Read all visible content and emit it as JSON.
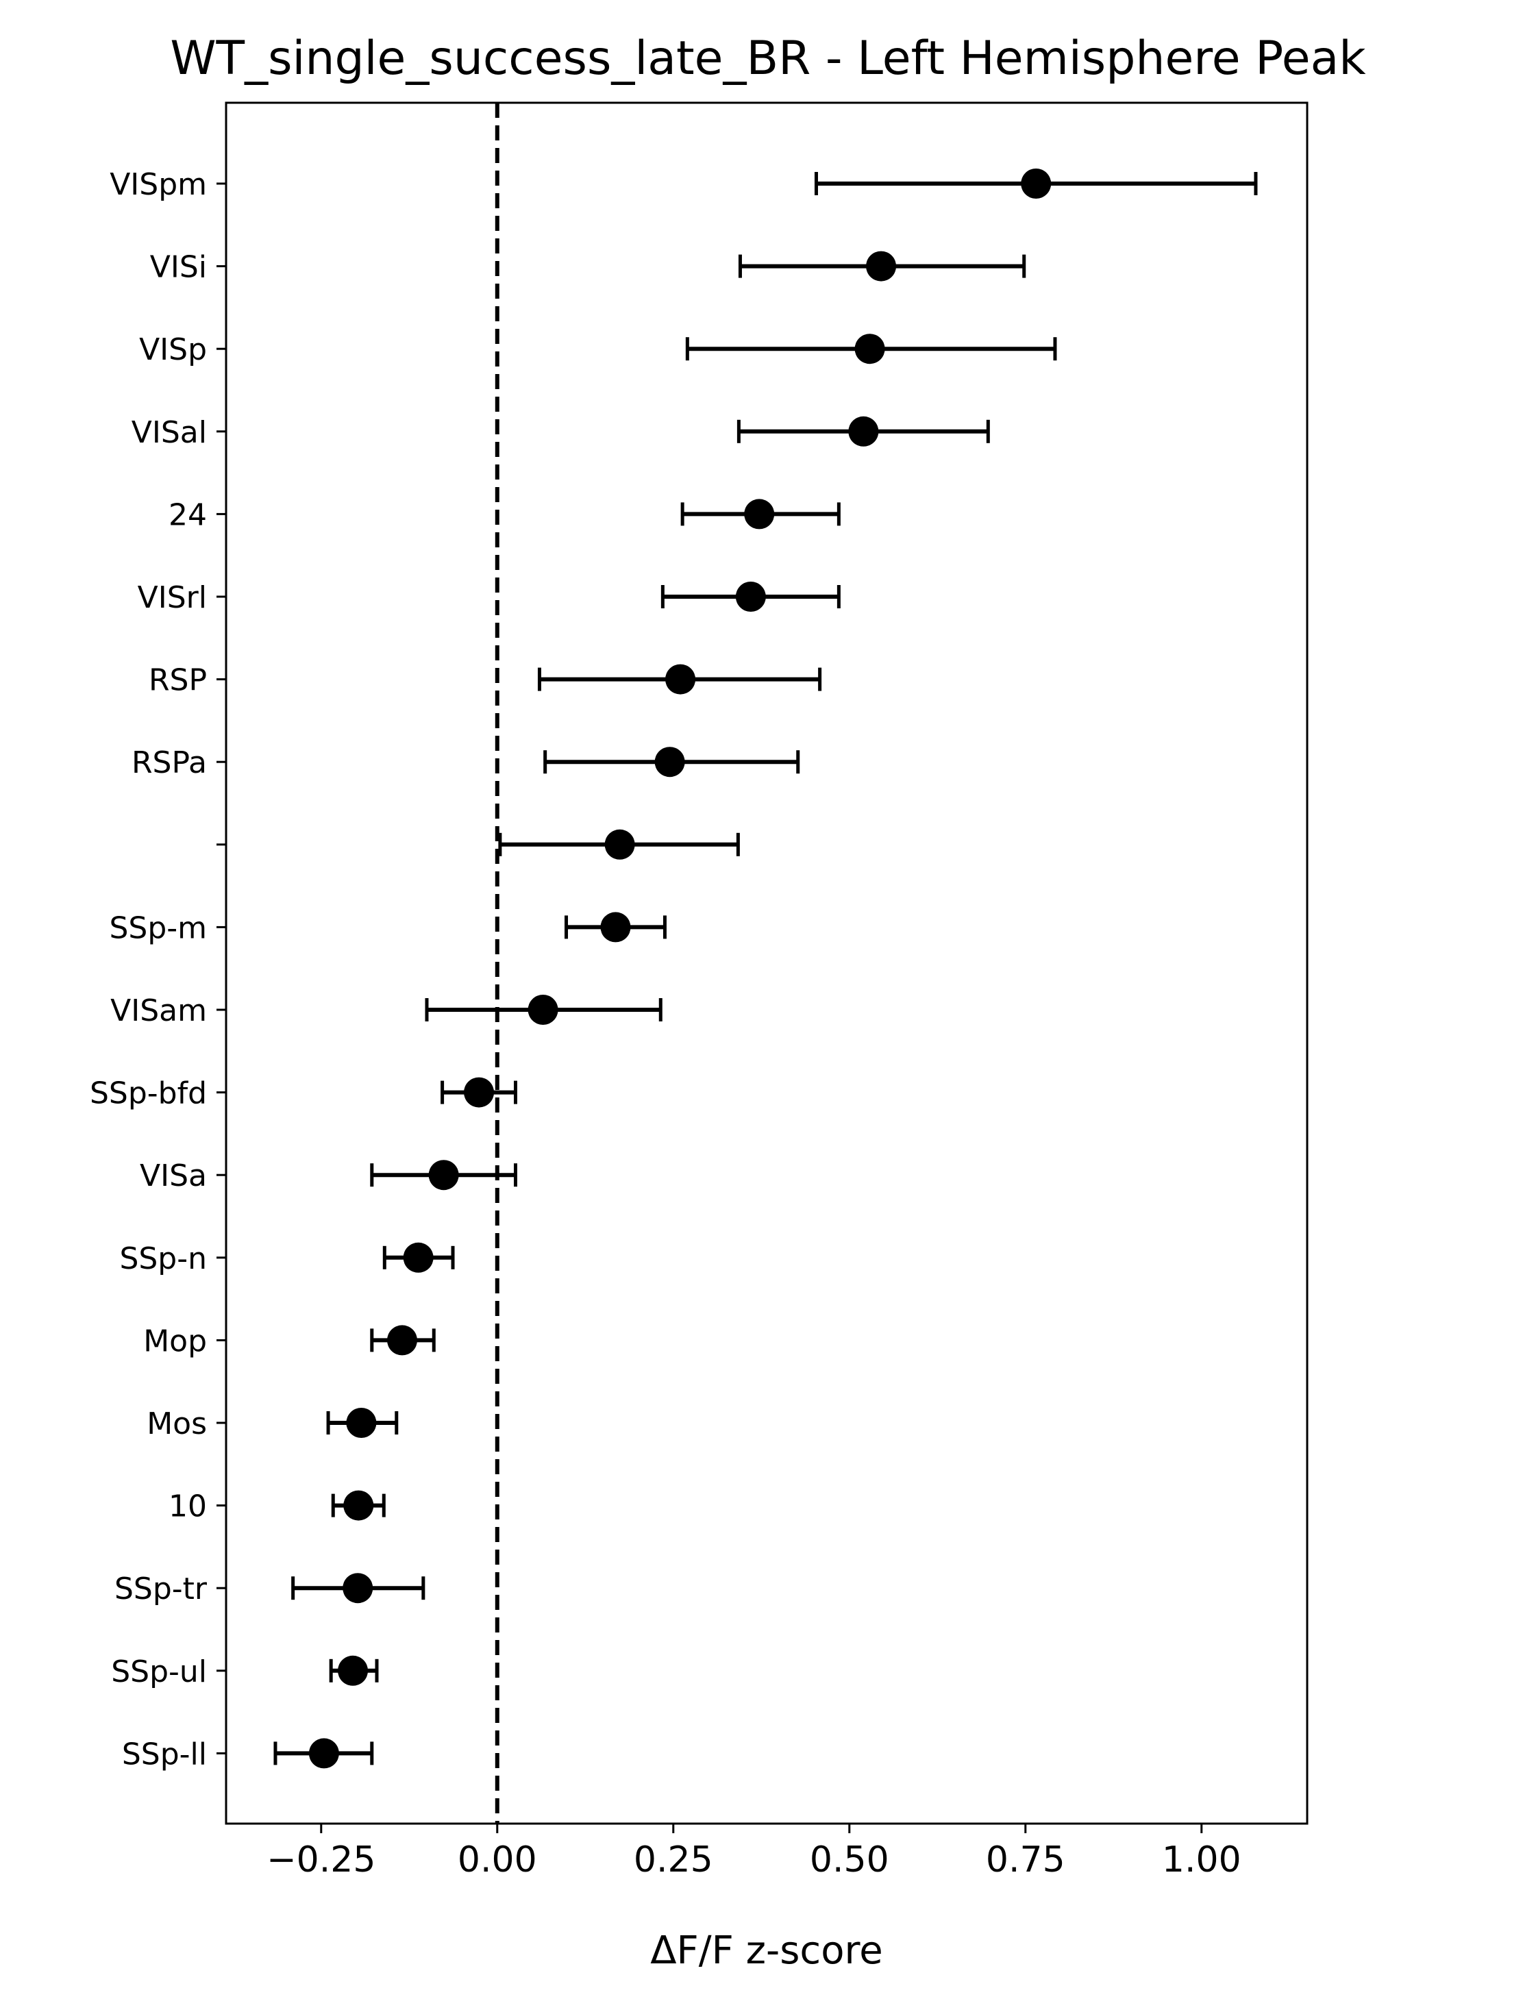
{
  "chart_data": {
    "type": "scatter",
    "title": "WT_single_success_late_BR - Left Hemisphere Peak",
    "xlabel": "ΔF/F z-score",
    "ylabel": "",
    "xlim": [
      -0.385,
      1.15
    ],
    "xticks": [
      -0.25,
      0.0,
      0.25,
      0.5,
      0.75,
      1.0
    ],
    "xtick_labels": [
      "−0.25",
      "0.00",
      "0.25",
      "0.50",
      "0.75",
      "1.00"
    ],
    "reference_line": {
      "x": 0,
      "style": "dashed"
    },
    "grid": false,
    "legend": "none",
    "marker_color": "#000000",
    "points": [
      {
        "label": "VISpm",
        "mean": 0.765,
        "lower": 0.453,
        "upper": 1.077
      },
      {
        "label": "VISi",
        "mean": 0.545,
        "lower": 0.345,
        "upper": 0.748
      },
      {
        "label": "VISp",
        "mean": 0.529,
        "lower": 0.27,
        "upper": 0.792
      },
      {
        "label": "VISal",
        "mean": 0.52,
        "lower": 0.343,
        "upper": 0.697
      },
      {
        "label": "24",
        "mean": 0.372,
        "lower": 0.263,
        "upper": 0.485
      },
      {
        "label": "VISrl",
        "mean": 0.36,
        "lower": 0.235,
        "upper": 0.485
      },
      {
        "label": "RSP",
        "mean": 0.26,
        "lower": 0.06,
        "upper": 0.458
      },
      {
        "label": "RSPa",
        "mean": 0.245,
        "lower": 0.068,
        "upper": 0.427
      },
      {
        "label": "",
        "mean": 0.174,
        "lower": 0.004,
        "upper": 0.342
      },
      {
        "label": "SSp-m",
        "mean": 0.168,
        "lower": 0.098,
        "upper": 0.238
      },
      {
        "label": "VISam",
        "mean": 0.065,
        "lower": -0.1,
        "upper": 0.232
      },
      {
        "label": "SSp-bfd",
        "mean": -0.026,
        "lower": -0.078,
        "upper": 0.026
      },
      {
        "label": "VISa",
        "mean": -0.076,
        "lower": -0.178,
        "upper": 0.026
      },
      {
        "label": "SSp-n",
        "mean": -0.112,
        "lower": -0.16,
        "upper": -0.063
      },
      {
        "label": "Mop",
        "mean": -0.135,
        "lower": -0.178,
        "upper": -0.09
      },
      {
        "label": "Mos",
        "mean": -0.193,
        "lower": -0.24,
        "upper": -0.143
      },
      {
        "label": "10",
        "mean": -0.197,
        "lower": -0.233,
        "upper": -0.161
      },
      {
        "label": "SSp-tr",
        "mean": -0.198,
        "lower": -0.29,
        "upper": -0.105
      },
      {
        "label": "SSp-ul",
        "mean": -0.205,
        "lower": -0.236,
        "upper": -0.171
      },
      {
        "label": "SSp-ll",
        "mean": -0.246,
        "lower": -0.315,
        "upper": -0.178
      }
    ]
  }
}
